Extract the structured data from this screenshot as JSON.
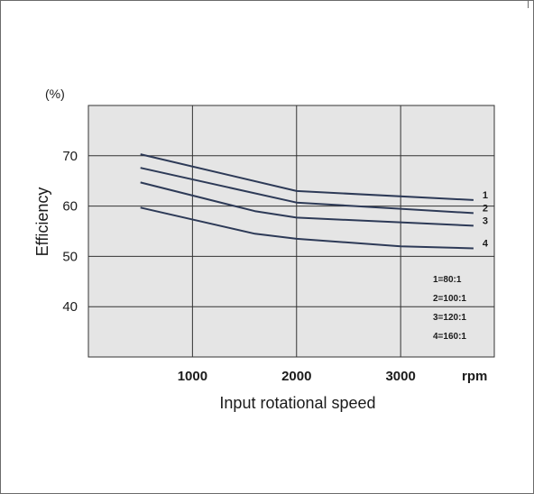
{
  "chart_data": {
    "type": "line",
    "xlabel": "Input rotational speed",
    "ylabel": "Efficiency",
    "y_unit": "(%)",
    "x_unit": "rpm",
    "xlim": [
      0,
      3900
    ],
    "ylim": [
      30,
      80
    ],
    "x_ticks": [
      1000,
      2000,
      3000
    ],
    "x_tick_labels": [
      "1000",
      "2000",
      "3000"
    ],
    "y_ticks": [
      40,
      50,
      60,
      70
    ],
    "y_tick_labels": [
      "40",
      "50",
      "60",
      "70"
    ],
    "grid": true,
    "series": [
      {
        "name": "1",
        "x": [
          500,
          2000,
          3700
        ],
        "y": [
          70.3,
          63.0,
          61.2
        ]
      },
      {
        "name": "2",
        "x": [
          500,
          2000,
          3700
        ],
        "y": [
          67.6,
          60.7,
          58.6
        ]
      },
      {
        "name": "3",
        "x": [
          500,
          1600,
          2000,
          3700
        ],
        "y": [
          64.7,
          59.0,
          57.7,
          56.1
        ]
      },
      {
        "name": "4",
        "x": [
          500,
          1600,
          2000,
          3000,
          3700
        ],
        "y": [
          59.7,
          54.5,
          53.5,
          52.0,
          51.6
        ]
      }
    ],
    "legend": {
      "placement": "bottom-right",
      "entries": [
        "1=80:1",
        "2=100:1",
        "3=120:1",
        "4=160:1"
      ]
    },
    "colors": {
      "line": "#2d3a57",
      "plot_bg": "#e5e5e5",
      "grid": "#333333"
    }
  }
}
